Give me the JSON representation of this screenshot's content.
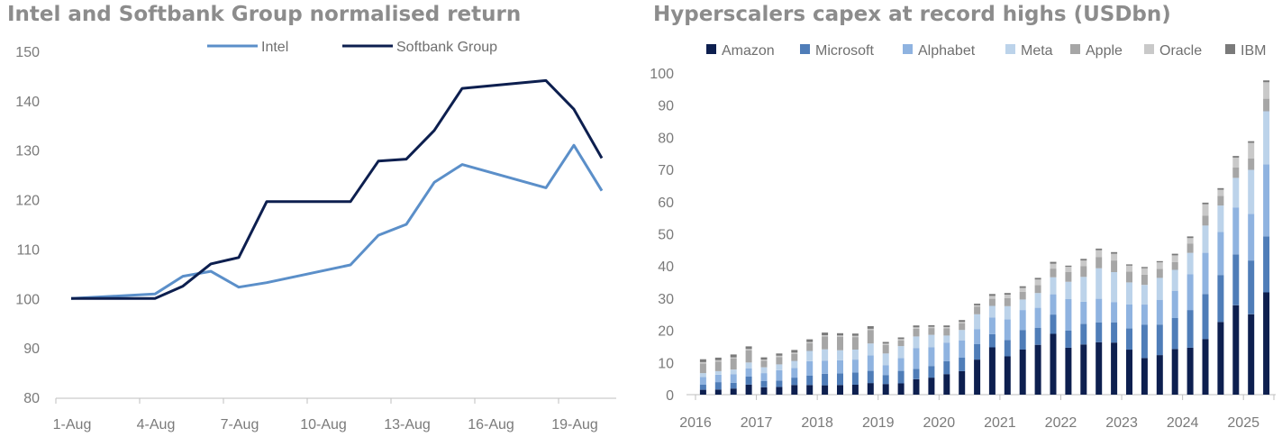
{
  "charts": {
    "left_title": "Intel and Softbank Group normalised return",
    "right_title": "Hyperscalers capex at record highs (USDbn)"
  },
  "chart_data": [
    {
      "type": "line",
      "title": "Intel and Softbank Group normalised return",
      "xlabel": "",
      "ylabel": "",
      "ylim": [
        80,
        150
      ],
      "yticks": [
        80,
        90,
        100,
        110,
        120,
        130,
        140,
        150
      ],
      "xticks": [
        "1-Aug",
        "4-Aug",
        "7-Aug",
        "10-Aug",
        "13-Aug",
        "16-Aug",
        "19-Aug"
      ],
      "x_note_days": [
        1,
        4,
        5,
        6,
        7,
        8,
        11,
        12,
        13,
        14,
        15,
        18,
        19,
        20
      ],
      "grid": false,
      "legend": "top-center",
      "series": [
        {
          "name": "Intel",
          "color": "#5b8fc9",
          "points": [
            [
              1,
              100
            ],
            [
              4,
              100.9
            ],
            [
              5,
              104.5
            ],
            [
              6,
              105.5
            ],
            [
              7,
              102.3
            ],
            [
              8,
              103.2
            ],
            [
              11,
              106.8
            ],
            [
              12,
              112.8
            ],
            [
              13,
              115
            ],
            [
              14,
              123.5
            ],
            [
              15,
              127.1
            ],
            [
              18,
              122.4
            ],
            [
              19,
              131
            ],
            [
              20,
              121.8
            ]
          ]
        },
        {
          "name": "Softbank Group",
          "color": "#0d1f4f",
          "points": [
            [
              1,
              100
            ],
            [
              4,
              100
            ],
            [
              5,
              102.5
            ],
            [
              6,
              107
            ],
            [
              7,
              108.3
            ],
            [
              8,
              119.6
            ],
            [
              11,
              119.6
            ],
            [
              12,
              127.8
            ],
            [
              13,
              128.2
            ],
            [
              14,
              134
            ],
            [
              15,
              142.5
            ],
            [
              18,
              144.1
            ],
            [
              19,
              138.3
            ],
            [
              20,
              128.4
            ]
          ]
        }
      ]
    },
    {
      "type": "bar",
      "stacked": true,
      "title": "Hyperscalers capex at record highs (USDbn)",
      "xlabel": "",
      "ylabel": "",
      "ylim": [
        0,
        100
      ],
      "yticks": [
        0,
        10,
        20,
        30,
        40,
        50,
        60,
        70,
        80,
        90,
        100
      ],
      "year_labels": [
        "2016",
        "2017",
        "2018",
        "2019",
        "2020",
        "2021",
        "2022",
        "2023",
        "2024",
        "2025"
      ],
      "grid": false,
      "legend": "top",
      "series": [
        {
          "name": "Amazon",
          "color": "#0d1f4f",
          "values": [
            1.5,
            1.6,
            1.9,
            3.1,
            2.3,
            2.4,
            3,
            3,
            2.9,
            3,
            3.1,
            3.6,
            3.3,
            3.5,
            4.8,
            5.3,
            6.4,
            7.3,
            10.9,
            14.7,
            11.9,
            14,
            15.5,
            18.9,
            14.6,
            15.6,
            16.3,
            16.2,
            14,
            11.4,
            12.3,
            14.2,
            14.6,
            17.3,
            22.6,
            27.8,
            25,
            31.8
          ]
        },
        {
          "name": "Microsoft",
          "color": "#4f7db8",
          "values": [
            1.6,
            2.3,
            1.8,
            2.5,
            1.9,
            2,
            2.3,
            2.9,
            3.6,
            3.6,
            3.8,
            3.8,
            2.8,
            3.9,
            3.2,
            3.6,
            4,
            4.2,
            4.8,
            4.1,
            5.1,
            6.1,
            5.3,
            6,
            5.3,
            6.4,
            6.2,
            6.3,
            6.6,
            10.3,
            9.5,
            9.6,
            11.7,
            14,
            14.6,
            15.8,
            16.7,
            17.4
          ]
        },
        {
          "name": "Alphabet",
          "color": "#8fb3e0",
          "values": [
            2.4,
            2.3,
            2.7,
            2.6,
            2.5,
            3.2,
            3,
            4.5,
            4.1,
            4.1,
            4,
            4.8,
            3,
            4,
            6.5,
            5.8,
            5.8,
            5.4,
            4.7,
            5.2,
            6.4,
            6.2,
            6.2,
            6.3,
            9.8,
            6.9,
            7.3,
            6.3,
            7.4,
            6.3,
            7.7,
            8.5,
            11.1,
            12.8,
            13.4,
            14.6,
            14.5,
            22.4
          ]
        },
        {
          "name": "Meta",
          "color": "#bcd3ea",
          "values": [
            1.2,
            1.1,
            1.4,
            1.8,
            1.8,
            1.8,
            2.2,
            3.2,
            3.5,
            3.1,
            3.1,
            3.7,
            3.7,
            3.7,
            3.6,
            3.9,
            2.2,
            3.2,
            4.6,
            3.6,
            4.1,
            3.3,
            4.6,
            5.3,
            5.4,
            7.7,
            9.5,
            9.3,
            6.9,
            6.1,
            6.8,
            6.5,
            6.7,
            8.5,
            8.2,
            9.2,
            13.7,
            16.5
          ]
        },
        {
          "name": "Apple",
          "color": "#a6a6a6",
          "values": [
            3,
            3,
            3.4,
            3.8,
            2,
            2.3,
            2.2,
            2.4,
            4,
            4.2,
            3.9,
            4.2,
            2.7,
            1.8,
            2.4,
            2.1,
            2.2,
            2.1,
            2.4,
            2.2,
            2.5,
            2.4,
            2.5,
            2.7,
            3,
            3.4,
            3.5,
            3.6,
            3.4,
            3.2,
            2.8,
            2.4,
            2.9,
            3.1,
            3,
            3.2,
            3.5,
            3.9
          ]
        },
        {
          "name": "Oracle",
          "color": "#c9c9c9",
          "values": [
            0.4,
            0.4,
            0.4,
            0.4,
            0.4,
            0.4,
            0.4,
            0.4,
            0.4,
            0.4,
            0.4,
            0.4,
            0.4,
            0.4,
            0.4,
            0.4,
            0.4,
            0.4,
            0.4,
            0.9,
            1.1,
            1.2,
            1.7,
            1.5,
            1.6,
            1.7,
            2.1,
            2.1,
            1.8,
            2,
            2,
            2.1,
            1.7,
            3.5,
            1.9,
            3.1,
            4.9,
            5.1
          ]
        },
        {
          "name": "IBM",
          "color": "#7a7a7a",
          "values": [
            0.9,
            0.8,
            0.9,
            0.8,
            0.7,
            0.7,
            0.8,
            0.8,
            0.8,
            0.7,
            0.7,
            0.8,
            0.5,
            0.5,
            0.6,
            0.5,
            0.5,
            0.6,
            0.5,
            0.6,
            0.5,
            0.5,
            0.5,
            0.6,
            0.4,
            0.5,
            0.5,
            0.5,
            0.4,
            0.4,
            0.4,
            0.5,
            0.5,
            0.5,
            0.5,
            0.5,
            0.5,
            0.6
          ]
        }
      ]
    }
  ]
}
